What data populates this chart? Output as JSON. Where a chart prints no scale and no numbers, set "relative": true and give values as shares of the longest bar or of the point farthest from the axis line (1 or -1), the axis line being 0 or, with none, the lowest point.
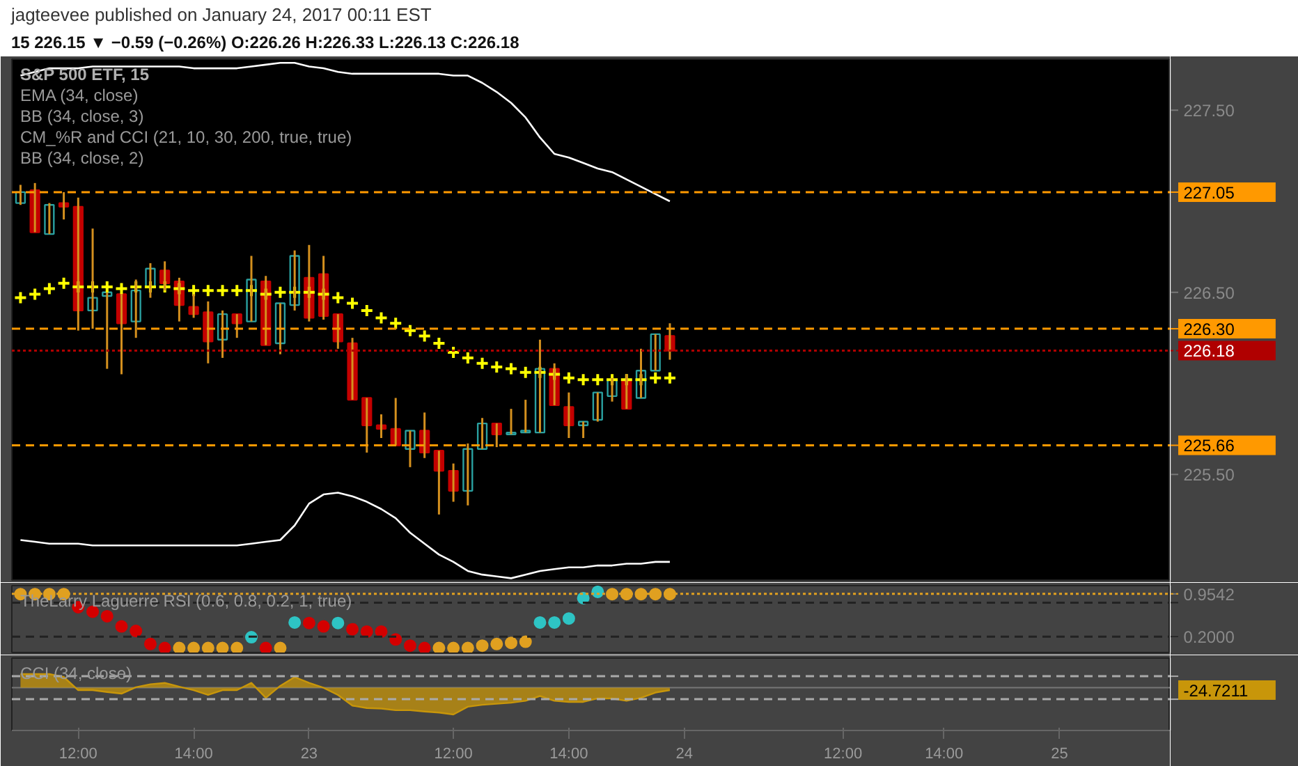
{
  "chart_data": [
    {
      "type": "candlestick",
      "title": "jagteevee published on January 24, 2017 00:11 EST",
      "subtitle": "15 226.15 ▼ −0.59 (−0.26%) O:226.26 H:226.33 L:226.13 C:226.18",
      "annotations": [
        "S&P 500 ETF, 15",
        "EMA (34, close)",
        "BB (34, close, 3)",
        "CM_%R and CCI (21, 10, 30, 200, true, true)",
        "BB (34, close, 2)"
      ],
      "categories": [
        null,
        null,
        null,
        null,
        null,
        null,
        null,
        null,
        null,
        null,
        null,
        null,
        null,
        null,
        null,
        null,
        null,
        null,
        null,
        null,
        null,
        null,
        null,
        null,
        null,
        null,
        null,
        null,
        null,
        null,
        null,
        null,
        null,
        null,
        null,
        null,
        null,
        null,
        null,
        null,
        null,
        null,
        null,
        null,
        null,
        null,
        null,
        null,
        null,
        null,
        null,
        null,
        null,
        null,
        null,
        null,
        null,
        null,
        null,
        null,
        null,
        null,
        null,
        null,
        null,
        null,
        null,
        null,
        null,
        null,
        null,
        null,
        null,
        null,
        null,
        null,
        null,
        null,
        null,
        null
      ],
      "ohlc": [
        [
          226.99,
          227.09,
          226.98,
          227.05
        ],
        [
          227.06,
          227.1,
          226.83,
          226.83
        ],
        [
          226.82,
          226.99,
          226.82,
          226.98
        ],
        [
          226.99,
          227.05,
          226.9,
          226.97
        ],
        [
          226.97,
          227.02,
          226.29,
          226.4
        ],
        [
          226.4,
          226.85,
          226.3,
          226.47
        ],
        [
          226.48,
          226.5,
          226.08,
          226.5
        ],
        [
          226.49,
          226.49,
          226.05,
          226.33
        ],
        [
          226.34,
          226.57,
          226.25,
          226.51
        ],
        [
          226.53,
          226.66,
          226.47,
          226.63
        ],
        [
          226.62,
          226.67,
          226.51,
          226.55
        ],
        [
          226.56,
          226.58,
          226.34,
          226.43
        ],
        [
          226.42,
          226.49,
          226.36,
          226.38
        ],
        [
          226.39,
          226.45,
          226.11,
          226.23
        ],
        [
          226.24,
          226.4,
          226.14,
          226.38
        ],
        [
          226.38,
          226.38,
          226.25,
          226.33
        ],
        [
          226.34,
          226.7,
          226.34,
          226.57
        ],
        [
          226.56,
          226.59,
          226.21,
          226.21
        ],
        [
          226.22,
          226.44,
          226.16,
          226.44
        ],
        [
          226.43,
          226.73,
          226.4,
          226.7
        ],
        [
          226.58,
          226.76,
          226.34,
          226.36
        ],
        [
          226.6,
          226.7,
          226.35,
          226.37
        ],
        [
          226.38,
          226.38,
          226.19,
          226.23
        ],
        [
          226.22,
          226.25,
          225.91,
          225.91
        ],
        [
          225.92,
          225.92,
          225.62,
          225.77
        ],
        [
          225.77,
          225.83,
          225.7,
          225.75
        ],
        [
          225.75,
          225.92,
          225.66,
          225.66
        ],
        [
          225.64,
          225.74,
          225.54,
          225.74
        ],
        [
          225.74,
          225.84,
          225.59,
          225.62
        ],
        [
          225.63,
          225.63,
          225.28,
          225.52
        ],
        [
          225.52,
          225.56,
          225.35,
          225.41
        ],
        [
          225.41,
          225.67,
          225.33,
          225.64
        ],
        [
          225.64,
          225.81,
          225.64,
          225.78
        ],
        [
          225.78,
          225.78,
          225.65,
          225.72
        ],
        [
          225.72,
          225.86,
          225.72,
          225.73
        ],
        [
          225.73,
          225.91,
          225.73,
          225.74
        ],
        [
          225.73,
          226.24,
          225.73,
          226.08
        ],
        [
          226.08,
          226.11,
          225.88,
          225.88
        ],
        [
          225.87,
          225.95,
          225.7,
          225.77
        ],
        [
          225.77,
          225.79,
          225.7,
          225.79
        ],
        [
          225.8,
          225.95,
          225.79,
          225.95
        ],
        [
          225.93,
          226.03,
          225.9,
          226.02
        ],
        [
          226.02,
          226.05,
          225.86,
          225.86
        ],
        [
          225.92,
          226.19,
          225.92,
          226.07
        ],
        [
          226.07,
          226.27,
          226.07,
          226.27
        ],
        [
          226.26,
          226.33,
          226.13,
          226.18
        ],
        null,
        null,
        null,
        null,
        null,
        null,
        null,
        null,
        null,
        null,
        null,
        null,
        null,
        null,
        null,
        null,
        null,
        null,
        null,
        null,
        null,
        null,
        null,
        null,
        null,
        null,
        null,
        null,
        null,
        null,
        null,
        null,
        null,
        null
      ],
      "series": [
        {
          "type": "line",
          "color": "#ffffff",
          "values": [
            227.69,
            227.71,
            227.73,
            227.73,
            227.73,
            227.74,
            227.74,
            227.74,
            227.74,
            227.74,
            227.74,
            227.74,
            227.73,
            227.73,
            227.73,
            227.73,
            227.74,
            227.75,
            227.76,
            227.76,
            227.74,
            227.73,
            227.71,
            227.7,
            227.7,
            227.7,
            227.7,
            227.7,
            227.7,
            227.7,
            227.69,
            227.69,
            227.65,
            227.6,
            227.54,
            227.46,
            227.35,
            227.26,
            227.24,
            227.21,
            227.18,
            227.16,
            227.12,
            227.08,
            227.04,
            227.0,
            null,
            null,
            null,
            null,
            null,
            null,
            null,
            null,
            null,
            null,
            null,
            null,
            null,
            null,
            null,
            null,
            null,
            null,
            null,
            null,
            null,
            null,
            null,
            null,
            null,
            null,
            null,
            null,
            null,
            null,
            null,
            null,
            null,
            null
          ]
        },
        {
          "type": "line",
          "color": "#ffffff",
          "values": [
            225.14,
            225.13,
            225.12,
            225.12,
            225.12,
            225.11,
            225.11,
            225.11,
            225.11,
            225.11,
            225.11,
            225.11,
            225.11,
            225.11,
            225.11,
            225.11,
            225.12,
            225.13,
            225.14,
            225.22,
            225.34,
            225.39,
            225.4,
            225.38,
            225.35,
            225.31,
            225.26,
            225.18,
            225.12,
            225.06,
            225.02,
            224.97,
            224.95,
            224.94,
            224.93,
            224.95,
            224.97,
            224.98,
            224.99,
            224.99,
            225.0,
            225.0,
            225.01,
            225.01,
            225.02,
            225.02,
            null,
            null,
            null,
            null,
            null,
            null,
            null,
            null,
            null,
            null,
            null,
            null,
            null,
            null,
            null,
            null,
            null,
            null,
            null,
            null,
            null,
            null,
            null,
            null,
            null,
            null,
            null,
            null,
            null,
            null,
            null,
            null,
            null,
            null
          ]
        },
        {
          "type": "scatter",
          "color": "#ffff00",
          "marker": "cross",
          "values": [
            226.47,
            226.49,
            226.52,
            226.55,
            226.53,
            226.53,
            226.53,
            226.52,
            226.53,
            226.53,
            226.53,
            226.52,
            226.51,
            226.51,
            226.51,
            226.51,
            226.51,
            226.49,
            226.5,
            226.5,
            226.5,
            226.49,
            226.47,
            226.44,
            226.4,
            226.36,
            226.33,
            226.29,
            226.26,
            226.22,
            226.17,
            226.14,
            226.11,
            226.09,
            226.08,
            226.06,
            226.06,
            226.05,
            226.03,
            226.02,
            226.02,
            226.02,
            226.02,
            226.02,
            226.03,
            226.03,
            null,
            null,
            null,
            null,
            null,
            null,
            null,
            null,
            null,
            null,
            null,
            null,
            null,
            null,
            null,
            null,
            null,
            null,
            null,
            null,
            null,
            null,
            null,
            null,
            null,
            null,
            null,
            null,
            null,
            null,
            null,
            null,
            null,
            null
          ]
        }
      ],
      "ylim": [
        224.92,
        227.78
      ],
      "yticks": [
        {
          "value": 227.5,
          "label": "227.50"
        },
        {
          "value": 226.5,
          "label": "226.50"
        },
        {
          "value": 225.5,
          "label": "225.50"
        }
      ],
      "tick_labels": "y",
      "ref_lines": [
        {
          "axis": "y",
          "value": 227.05,
          "label": "227.05",
          "color": "#ff9900",
          "line_style": "dashed"
        },
        {
          "axis": "y",
          "value": 226.3,
          "label": "226.30",
          "color": "#ff9900",
          "line_style": "dashed"
        },
        {
          "axis": "y",
          "value": 226.18,
          "label": "226.18",
          "color": "#b00000",
          "line_style": "dotted"
        },
        {
          "axis": "y",
          "value": 225.66,
          "label": "225.66",
          "color": "#ff9900",
          "line_style": "dashed"
        }
      ]
    },
    {
      "type": "scatter",
      "annotations": [
        "TheLarry Laguerre RSI (0.6, 0.8, 0.2, 1, true)"
      ],
      "marker": "circle",
      "categories": [
        null,
        null,
        null,
        null,
        null,
        null,
        null,
        null,
        null,
        null,
        null,
        null,
        null,
        null,
        null,
        null,
        null,
        null,
        null,
        null,
        null,
        null,
        null,
        null,
        null,
        null,
        null,
        null,
        null,
        null,
        null,
        null,
        null,
        null,
        null,
        null,
        null,
        null,
        null,
        null,
        null,
        null,
        null,
        null,
        null,
        null,
        null,
        null,
        null,
        null,
        null,
        null,
        null,
        null,
        null,
        null,
        null,
        null,
        null,
        null,
        null,
        null,
        null,
        null,
        null,
        null,
        null,
        null,
        null,
        null,
        null,
        null,
        null,
        null,
        null,
        null,
        null,
        null,
        null,
        null
      ],
      "series": [
        {
          "color": "#d40000",
          "values": [
            null,
            null,
            null,
            null,
            0.72,
            0.64,
            0.56,
            0.38,
            0.3,
            0.07,
            0,
            null,
            null,
            null,
            null,
            null,
            null,
            0,
            null,
            null,
            0.44,
            0.38,
            null,
            0.33,
            0.29,
            0.29,
            0.15,
            0.04,
            0,
            null,
            null,
            null,
            null,
            null,
            null,
            null,
            null,
            null,
            null,
            null,
            null,
            null,
            null,
            null,
            null,
            null,
            null,
            null,
            null,
            null,
            null,
            null,
            null,
            null,
            null,
            null,
            null,
            null,
            null,
            null,
            null,
            null,
            null,
            null,
            null,
            null,
            null,
            null,
            null,
            null,
            null,
            null,
            null,
            null,
            null,
            null,
            null,
            null,
            null,
            null
          ]
        },
        {
          "color": "#2ec4c4",
          "values": [
            null,
            null,
            null,
            null,
            null,
            null,
            null,
            null,
            null,
            null,
            null,
            null,
            null,
            null,
            null,
            null,
            0.19,
            null,
            null,
            0.45,
            null,
            null,
            0.44,
            null,
            null,
            null,
            null,
            null,
            null,
            null,
            null,
            null,
            null,
            null,
            null,
            null,
            0.45,
            0.45,
            0.52,
            0.88,
            0.99,
            null,
            null,
            null,
            null,
            null,
            null,
            null,
            null,
            null,
            null,
            null,
            null,
            null,
            null,
            null,
            null,
            null,
            null,
            null,
            null,
            null,
            null,
            null,
            null,
            null,
            null,
            null,
            null,
            null,
            null,
            null,
            null,
            null,
            null,
            null,
            null,
            null,
            null,
            null
          ]
        },
        {
          "color": "#e0a020",
          "values": [
            0.95,
            0.95,
            0.95,
            0.95,
            null,
            null,
            null,
            null,
            null,
            null,
            null,
            0,
            0,
            0,
            0,
            0,
            null,
            null,
            0,
            null,
            null,
            null,
            null,
            null,
            null,
            null,
            null,
            null,
            null,
            0,
            0,
            0,
            0.04,
            0.07,
            0.09,
            0.11,
            null,
            null,
            null,
            null,
            null,
            0.95,
            0.95,
            0.95,
            0.95,
            0.95,
            null,
            null,
            null,
            null,
            null,
            null,
            null,
            null,
            null,
            null,
            null,
            null,
            null,
            null,
            null,
            null,
            null,
            null,
            null,
            null,
            null,
            null,
            null,
            null,
            null,
            null,
            null,
            null,
            null,
            null,
            null,
            null,
            null,
            null
          ]
        }
      ],
      "ylim": [
        -0.08,
        1.1
      ],
      "yticks": [
        {
          "value": 0.9542,
          "label": "0.9542"
        },
        {
          "value": 0.2,
          "label": "0.2000"
        }
      ],
      "tick_labels": "y",
      "ref_lines": [
        {
          "axis": "y",
          "value": 0.9542,
          "color": "#e0a020",
          "line_style": "dotted"
        },
        {
          "axis": "y",
          "value": 0.8,
          "color": "#222222",
          "line_style": "dashed"
        },
        {
          "axis": "y",
          "value": 0.2,
          "color": "#222222",
          "line_style": "dashed"
        }
      ]
    },
    {
      "type": "area",
      "relative": true,
      "color": "#c8960a",
      "annotations": [
        "CCI (34, close)",
        "-24.7211"
      ],
      "categories": [
        null,
        null,
        null,
        null,
        "12:00",
        null,
        null,
        null,
        null,
        null,
        null,
        null,
        "14:00",
        null,
        null,
        null,
        null,
        null,
        null,
        null,
        "23",
        null,
        null,
        null,
        null,
        null,
        null,
        null,
        null,
        null,
        "12:00",
        null,
        null,
        null,
        null,
        null,
        null,
        null,
        "14:00",
        null,
        null,
        null,
        null,
        null,
        null,
        null,
        "24",
        null,
        null,
        null,
        null,
        null,
        null,
        null,
        null,
        null,
        null,
        "12:00",
        null,
        null,
        null,
        null,
        null,
        null,
        "14:00",
        null,
        null,
        null,
        null,
        null,
        null,
        null,
        "25",
        null,
        null,
        null,
        null,
        null,
        null,
        null
      ],
      "values": [
        0.51,
        0.51,
        0.51,
        0.4,
        -0.09,
        -0.09,
        -0.16,
        -0.22,
        0.02,
        0.13,
        0.18,
        0.04,
        -0.09,
        -0.27,
        -0.09,
        -0.09,
        0.18,
        -0.38,
        0.07,
        0.4,
        0.18,
        0,
        -0.27,
        -0.67,
        -0.76,
        -0.78,
        -0.84,
        -0.84,
        -0.89,
        -0.93,
        -1,
        -0.71,
        -0.64,
        -0.6,
        -0.56,
        -0.49,
        -0.31,
        -0.49,
        -0.53,
        -0.53,
        -0.4,
        -0.4,
        -0.49,
        -0.38,
        -0.18,
        -0.09,
        null,
        null,
        null,
        null,
        null,
        null,
        null,
        null,
        null,
        null,
        null,
        null,
        null,
        null,
        null,
        null,
        null,
        null,
        null,
        null,
        null,
        null,
        null,
        null,
        null,
        null,
        null,
        null,
        null,
        null,
        null,
        null,
        null,
        null
      ],
      "tick_labels": "x",
      "ref_lines": [
        {
          "axis": "y",
          "value": 0.43,
          "color": "#aaaaaa",
          "line_style": "dashed"
        },
        {
          "axis": "y",
          "value": -0.43,
          "color": "#aaaaaa",
          "line_style": "dashed"
        }
      ]
    }
  ]
}
